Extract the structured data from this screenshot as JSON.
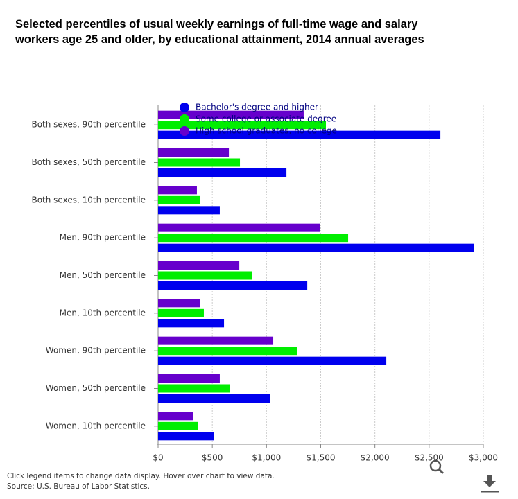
{
  "chart_data": {
    "type": "bar",
    "orientation": "horizontal",
    "title": "Selected percentiles of usual weekly earnings of full-time wage and salary workers age 25 and older, by educational attainment, 2014 annual averages",
    "categories": [
      "Both sexes, 90th percentile",
      "Both sexes, 50th percentile",
      "Both sexes, 10th percentile",
      "Men, 90th percentile",
      "Men, 50th percentile",
      "Men, 10th percentile",
      "Women, 90th percentile",
      "Women, 50th percentile",
      "Women, 10th percentile"
    ],
    "series": [
      {
        "name": "Bachelor's degree and higher",
        "color": "#0000ee",
        "values": [
          2604,
          1184,
          569,
          2911,
          1376,
          608,
          2105,
          1036,
          518
        ]
      },
      {
        "name": "Some college or associate degree",
        "color": "#00ee00",
        "values": [
          1548,
          755,
          390,
          1753,
          864,
          422,
          1280,
          659,
          371
        ]
      },
      {
        "name": "High school graduates, no college",
        "color": "#6600cc",
        "values": [
          1343,
          653,
          358,
          1491,
          749,
          384,
          1062,
          569,
          326
        ]
      }
    ],
    "xlim": [
      0,
      3000
    ],
    "xticks": [
      {
        "value": 0,
        "label": "$0"
      },
      {
        "value": 500,
        "label": "$500"
      },
      {
        "value": 1000,
        "label": "$1,000"
      },
      {
        "value": 1500,
        "label": "$1,500"
      },
      {
        "value": 2000,
        "label": "$2,000"
      },
      {
        "value": 2500,
        "label": "$2,500"
      },
      {
        "value": 3000,
        "label": "$3,000"
      }
    ],
    "grid": true,
    "legend": "top-left",
    "note": "Click legend items to change data display. Hover over chart to view data.",
    "source": "Source: U.S. Bureau of Labor Statistics."
  }
}
